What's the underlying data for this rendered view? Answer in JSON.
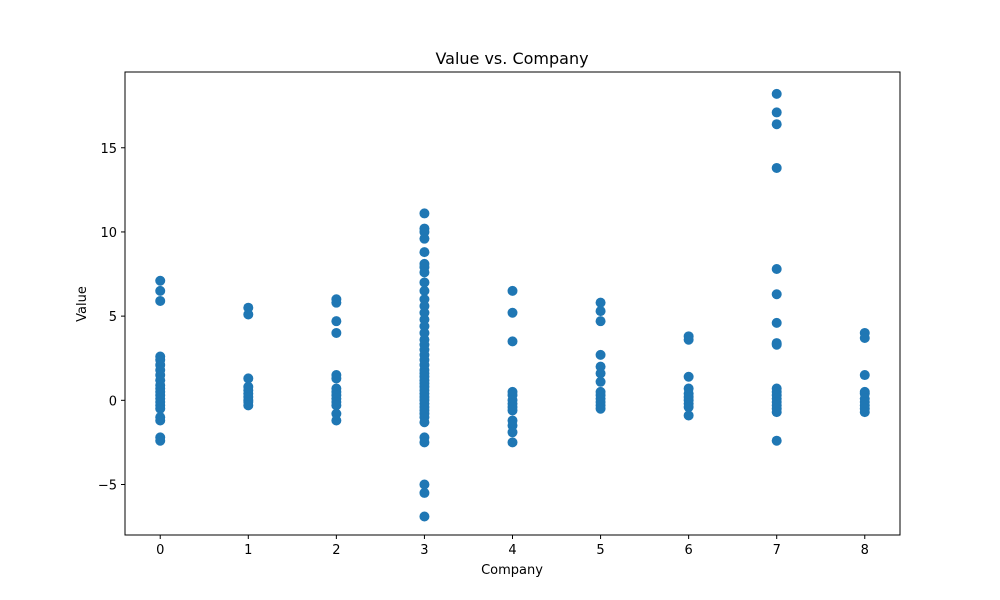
{
  "chart_data": {
    "type": "scatter",
    "title": "Value vs. Company",
    "xlabel": "Company",
    "ylabel": "Value",
    "xlim": [
      -0.4,
      8.4
    ],
    "ylim": [
      -8.0,
      19.5
    ],
    "xticks": [
      0,
      1,
      2,
      3,
      4,
      5,
      6,
      7,
      8
    ],
    "xtick_labels": [
      "0",
      "1",
      "2",
      "3",
      "4",
      "5",
      "6",
      "7",
      "8"
    ],
    "yticks": [
      -5,
      0,
      5,
      10,
      15
    ],
    "ytick_labels": [
      "−5",
      "0",
      "5",
      "10",
      "15"
    ],
    "grid": false,
    "marker_color": "#1f77b4",
    "series": [
      {
        "points": [
          [
            0,
            7.1
          ],
          [
            0,
            6.5
          ],
          [
            0,
            5.9
          ],
          [
            0,
            2.6
          ],
          [
            0,
            2.4
          ],
          [
            0,
            2.1
          ],
          [
            0,
            1.8
          ],
          [
            0,
            1.5
          ],
          [
            0,
            1.2
          ],
          [
            0,
            0.9
          ],
          [
            0,
            0.7
          ],
          [
            0,
            0.5
          ],
          [
            0,
            0.3
          ],
          [
            0,
            0.1
          ],
          [
            0,
            -0.1
          ],
          [
            0,
            -0.3
          ],
          [
            0,
            -0.5
          ],
          [
            0,
            -1.0
          ],
          [
            0,
            -1.2
          ],
          [
            0,
            -2.2
          ],
          [
            0,
            -2.4
          ],
          [
            1,
            5.5
          ],
          [
            1,
            5.1
          ],
          [
            1,
            1.3
          ],
          [
            1,
            0.8
          ],
          [
            1,
            0.6
          ],
          [
            1,
            0.4
          ],
          [
            1,
            0.2
          ],
          [
            1,
            0.0
          ],
          [
            1,
            -0.1
          ],
          [
            1,
            -0.3
          ],
          [
            2,
            6.0
          ],
          [
            2,
            5.8
          ],
          [
            2,
            4.7
          ],
          [
            2,
            4.0
          ],
          [
            2,
            1.5
          ],
          [
            2,
            1.3
          ],
          [
            2,
            0.7
          ],
          [
            2,
            0.5
          ],
          [
            2,
            0.3
          ],
          [
            2,
            0.1
          ],
          [
            2,
            -0.1
          ],
          [
            2,
            -0.3
          ],
          [
            2,
            -0.8
          ],
          [
            2,
            -1.2
          ],
          [
            3,
            11.1
          ],
          [
            3,
            10.2
          ],
          [
            3,
            10.0
          ],
          [
            3,
            9.6
          ],
          [
            3,
            8.8
          ],
          [
            3,
            8.1
          ],
          [
            3,
            7.9
          ],
          [
            3,
            7.6
          ],
          [
            3,
            7.0
          ],
          [
            3,
            6.5
          ],
          [
            3,
            6.0
          ],
          [
            3,
            5.6
          ],
          [
            3,
            5.2
          ],
          [
            3,
            4.8
          ],
          [
            3,
            4.4
          ],
          [
            3,
            4.0
          ],
          [
            3,
            3.6
          ],
          [
            3,
            3.3
          ],
          [
            3,
            3.0
          ],
          [
            3,
            2.7
          ],
          [
            3,
            2.4
          ],
          [
            3,
            2.1
          ],
          [
            3,
            1.8
          ],
          [
            3,
            1.6
          ],
          [
            3,
            1.4
          ],
          [
            3,
            1.2
          ],
          [
            3,
            1.0
          ],
          [
            3,
            0.8
          ],
          [
            3,
            0.6
          ],
          [
            3,
            0.4
          ],
          [
            3,
            0.2
          ],
          [
            3,
            0.0
          ],
          [
            3,
            -0.2
          ],
          [
            3,
            -0.4
          ],
          [
            3,
            -0.6
          ],
          [
            3,
            -0.8
          ],
          [
            3,
            -1.0
          ],
          [
            3,
            -1.3
          ],
          [
            3,
            -2.2
          ],
          [
            3,
            -2.5
          ],
          [
            3,
            -5.0
          ],
          [
            3,
            -5.5
          ],
          [
            3,
            -6.9
          ],
          [
            4,
            6.5
          ],
          [
            4,
            5.2
          ],
          [
            4,
            3.5
          ],
          [
            4,
            0.5
          ],
          [
            4,
            0.3
          ],
          [
            4,
            0.0
          ],
          [
            4,
            -0.2
          ],
          [
            4,
            -0.4
          ],
          [
            4,
            -0.6
          ],
          [
            4,
            -1.2
          ],
          [
            4,
            -1.5
          ],
          [
            4,
            -1.9
          ],
          [
            4,
            -2.5
          ],
          [
            5,
            5.8
          ],
          [
            5,
            5.3
          ],
          [
            5,
            4.7
          ],
          [
            5,
            2.7
          ],
          [
            5,
            2.0
          ],
          [
            5,
            1.6
          ],
          [
            5,
            1.1
          ],
          [
            5,
            0.5
          ],
          [
            5,
            0.3
          ],
          [
            5,
            0.1
          ],
          [
            5,
            -0.1
          ],
          [
            5,
            -0.3
          ],
          [
            5,
            -0.5
          ],
          [
            6,
            3.8
          ],
          [
            6,
            3.6
          ],
          [
            6,
            1.4
          ],
          [
            6,
            0.7
          ],
          [
            6,
            0.4
          ],
          [
            6,
            0.2
          ],
          [
            6,
            0.0
          ],
          [
            6,
            -0.2
          ],
          [
            6,
            -0.4
          ],
          [
            6,
            -0.9
          ],
          [
            7,
            18.2
          ],
          [
            7,
            17.1
          ],
          [
            7,
            16.4
          ],
          [
            7,
            13.8
          ],
          [
            7,
            7.8
          ],
          [
            7,
            6.3
          ],
          [
            7,
            4.6
          ],
          [
            7,
            3.4
          ],
          [
            7,
            3.3
          ],
          [
            7,
            0.7
          ],
          [
            7,
            0.5
          ],
          [
            7,
            0.3
          ],
          [
            7,
            0.1
          ],
          [
            7,
            -0.1
          ],
          [
            7,
            -0.3
          ],
          [
            7,
            -0.5
          ],
          [
            7,
            -0.7
          ],
          [
            7,
            -2.4
          ],
          [
            8,
            4.0
          ],
          [
            8,
            3.7
          ],
          [
            8,
            1.5
          ],
          [
            8,
            0.5
          ],
          [
            8,
            0.4
          ],
          [
            8,
            0.1
          ],
          [
            8,
            -0.1
          ],
          [
            8,
            -0.3
          ],
          [
            8,
            -0.5
          ],
          [
            8,
            -0.7
          ]
        ]
      }
    ]
  }
}
